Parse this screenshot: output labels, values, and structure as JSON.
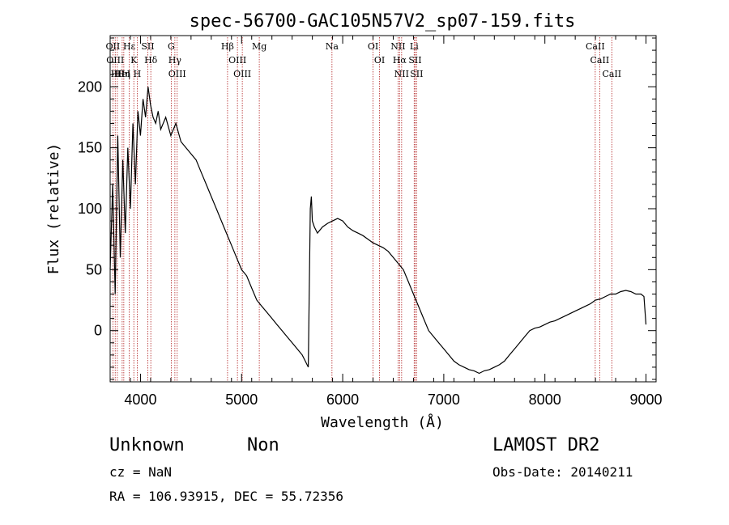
{
  "chart_data": {
    "type": "line",
    "title": "spec-56700-GAC105N57V2_sp07-159.fits",
    "xlabel": "Wavelength (Å)",
    "ylabel": "Flux (relative)",
    "xlim": [
      3700,
      9100
    ],
    "ylim": [
      -42,
      242
    ],
    "x_ticks": [
      4000,
      5000,
      6000,
      7000,
      8000,
      9000
    ],
    "y_ticks": [
      0,
      50,
      100,
      150,
      200
    ],
    "grid": false,
    "line_color": "#000000",
    "marker_color": "#b22222",
    "series": [
      {
        "x": [
          3700,
          3725,
          3750,
          3775,
          3800,
          3825,
          3850,
          3875,
          3900,
          3925,
          3950,
          3975,
          4000,
          4025,
          4050,
          4075,
          4100,
          4125,
          4150,
          4175,
          4200,
          4250,
          4300,
          4350,
          4400,
          4450,
          4500,
          4550,
          4600,
          4650,
          4700,
          4750,
          4800,
          4850,
          4900,
          4950,
          5000,
          5050,
          5100,
          5150,
          5200,
          5250,
          5300,
          5350,
          5400,
          5450,
          5500,
          5550,
          5600,
          5630,
          5660,
          5680,
          5690,
          5700,
          5720,
          5750,
          5800,
          5850,
          5900,
          5950,
          6000,
          6050,
          6100,
          6150,
          6200,
          6250,
          6300,
          6350,
          6400,
          6450,
          6500,
          6550,
          6600,
          6650,
          6700,
          6750,
          6800,
          6850,
          6900,
          6950,
          7000,
          7050,
          7100,
          7150,
          7200,
          7250,
          7300,
          7350,
          7400,
          7450,
          7500,
          7550,
          7600,
          7650,
          7700,
          7750,
          7800,
          7850,
          7900,
          7950,
          8000,
          8050,
          8100,
          8150,
          8200,
          8250,
          8300,
          8350,
          8400,
          8450,
          8500,
          8550,
          8600,
          8650,
          8700,
          8750,
          8800,
          8850,
          8900,
          8950,
          8980,
          9000
        ],
        "y": [
          50,
          120,
          30,
          160,
          60,
          140,
          80,
          150,
          100,
          170,
          120,
          180,
          160,
          190,
          175,
          200,
          185,
          175,
          170,
          180,
          165,
          175,
          160,
          170,
          155,
          150,
          145,
          140,
          130,
          120,
          110,
          100,
          90,
          80,
          70,
          60,
          50,
          45,
          35,
          25,
          20,
          15,
          10,
          5,
          0,
          -5,
          -10,
          -15,
          -20,
          -25,
          -30,
          100,
          110,
          90,
          85,
          80,
          85,
          88,
          90,
          92,
          90,
          85,
          82,
          80,
          78,
          75,
          72,
          70,
          68,
          65,
          60,
          55,
          50,
          40,
          30,
          20,
          10,
          0,
          -5,
          -10,
          -15,
          -20,
          -25,
          -28,
          -30,
          -32,
          -33,
          -35,
          -33,
          -32,
          -30,
          -28,
          -25,
          -20,
          -15,
          -10,
          -5,
          0,
          2,
          3,
          5,
          7,
          8,
          10,
          12,
          14,
          16,
          18,
          20,
          22,
          25,
          26,
          28,
          30,
          30,
          32,
          33,
          32,
          30,
          30,
          28,
          5
        ]
      }
    ],
    "line_markers": [
      {
        "x": 3727,
        "label": "OII"
      },
      {
        "x": 3750,
        "label": "OIII"
      },
      {
        "x": 3771,
        "label": "Hθ"
      },
      {
        "x": 3819,
        "label": "HeI"
      },
      {
        "x": 3835,
        "label": "Hη"
      },
      {
        "x": 3889,
        "label": "Hε"
      },
      {
        "x": 3934,
        "label": "K"
      },
      {
        "x": 3968,
        "label": "H"
      },
      {
        "x": 4072,
        "label": "SII"
      },
      {
        "x": 4102,
        "label": "Hδ"
      },
      {
        "x": 4304,
        "label": "G"
      },
      {
        "x": 4340,
        "label": "Hγ"
      },
      {
        "x": 4363,
        "label": "OIII"
      },
      {
        "x": 4861,
        "label": "Hβ"
      },
      {
        "x": 4959,
        "label": "OIII"
      },
      {
        "x": 5007,
        "label": "OIII"
      },
      {
        "x": 5175,
        "label": "Mg"
      },
      {
        "x": 5894,
        "label": "Na"
      },
      {
        "x": 6300,
        "label": "OI"
      },
      {
        "x": 6364,
        "label": "OI"
      },
      {
        "x": 6548,
        "label": "NII"
      },
      {
        "x": 6563,
        "label": "Hα"
      },
      {
        "x": 6583,
        "label": "NII"
      },
      {
        "x": 6707,
        "label": "Li"
      },
      {
        "x": 6716,
        "label": "SII"
      },
      {
        "x": 6731,
        "label": "SII"
      },
      {
        "x": 8498,
        "label": "CaII"
      },
      {
        "x": 8542,
        "label": "CaII"
      },
      {
        "x": 8662,
        "label": "CaII"
      }
    ]
  },
  "info": {
    "class": "Unknown",
    "subclass": "Non",
    "survey": "LAMOST DR2",
    "cz": "cz = NaN",
    "obs_date": "Obs-Date: 20140211",
    "coords": "RA = 106.93915, DEC =  55.72356"
  }
}
